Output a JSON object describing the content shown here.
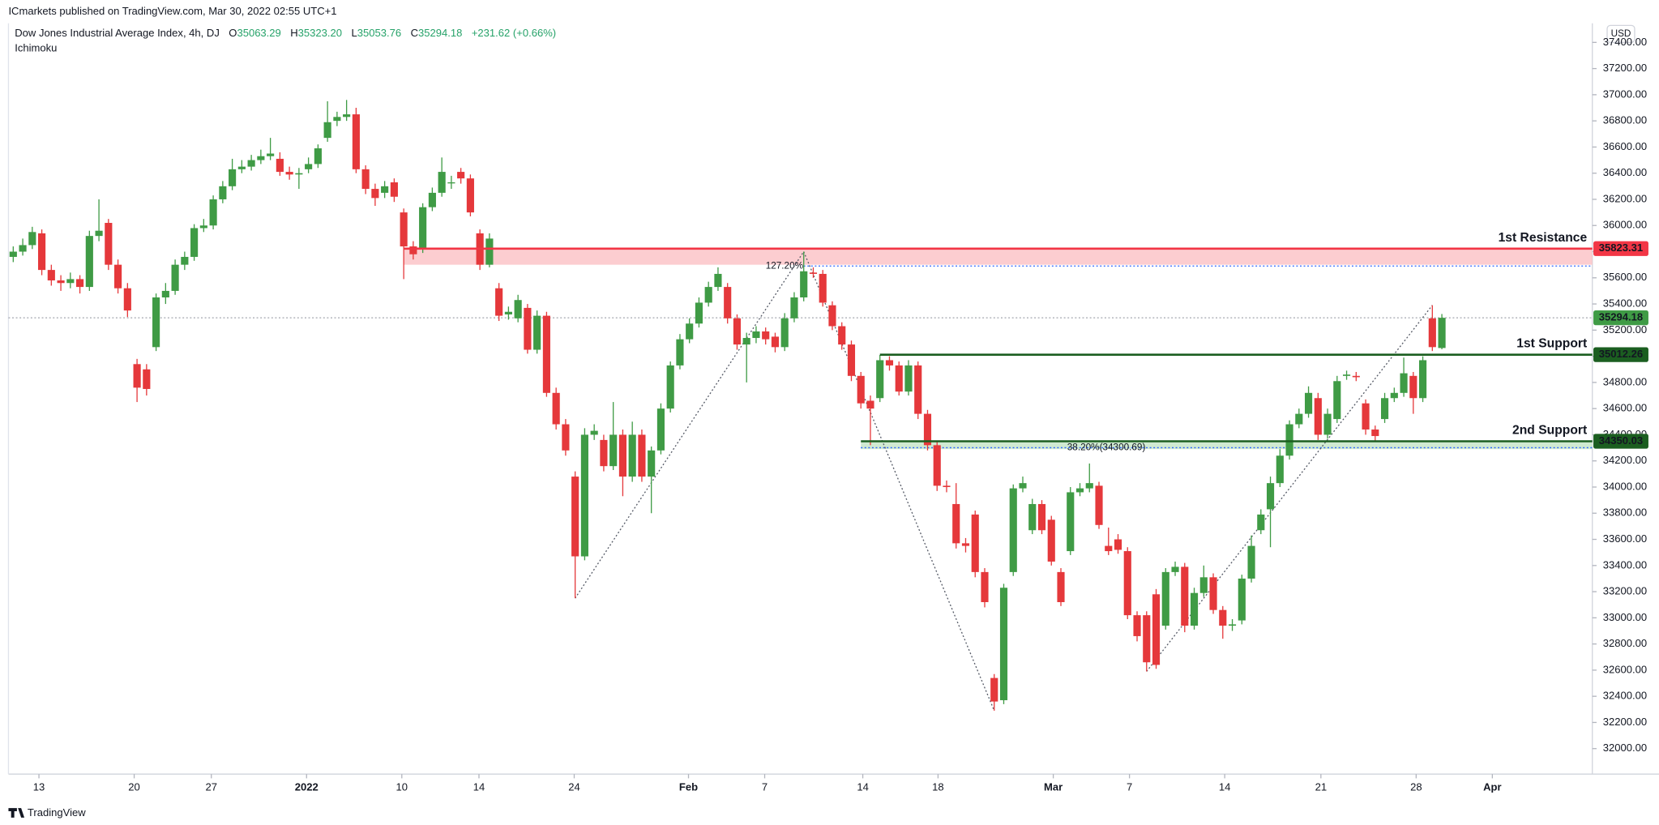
{
  "header": {
    "published": "ICmarkets published on TradingView.com, Mar 30, 2022 02:55 UTC+1",
    "brand": "TradingView"
  },
  "chart_data": {
    "type": "candlestick",
    "title": "Dow Jones Industrial Average Index, 4h, DJ",
    "ohlc_labels": [
      {
        "key": "O",
        "text": "35063.29"
      },
      {
        "key": "H",
        "text": "35323.20"
      },
      {
        "key": "L",
        "text": "35053.76"
      },
      {
        "key": "C",
        "text": "35294.18"
      }
    ],
    "change": "+231.62 (+0.66%)",
    "indicator": "Ichimoku",
    "currency": "USD",
    "up_color": "#3f9b45",
    "down_color": "#e5383b",
    "x": [
      0,
      1,
      2,
      3,
      4,
      5,
      6,
      7,
      8,
      9,
      10,
      11,
      12,
      13,
      14,
      15,
      16,
      17,
      18,
      19,
      20,
      21,
      22,
      23,
      24,
      25,
      26,
      27,
      28,
      29,
      30,
      31,
      32,
      33,
      34,
      35,
      36,
      37,
      38,
      39,
      40,
      41,
      42,
      43,
      44,
      45,
      46,
      47,
      48,
      49,
      50,
      51,
      52,
      53,
      54,
      55,
      56,
      57,
      58,
      59,
      60,
      61,
      62,
      63,
      64,
      65,
      66,
      67,
      68,
      69,
      70,
      71,
      72,
      73,
      74,
      75,
      76,
      77,
      78,
      79,
      80,
      81,
      82,
      83,
      84,
      85,
      86,
      87,
      88,
      89,
      90,
      91,
      92,
      93,
      94,
      95,
      96,
      97,
      98,
      99,
      100,
      101,
      102,
      103,
      104,
      105,
      106,
      107,
      108,
      109,
      110,
      111,
      112,
      113,
      114,
      115,
      116,
      117,
      118,
      119,
      120,
      121,
      122,
      123,
      124,
      125,
      126,
      127,
      128,
      129,
      130,
      131,
      132,
      133,
      134,
      135,
      136,
      137,
      138,
      139,
      140,
      141,
      142,
      143,
      144,
      145,
      146,
      147,
      148,
      149,
      150
    ],
    "open": [
      35760,
      35800,
      35850,
      35940,
      35660,
      35580,
      35560,
      35590,
      35530,
      35920,
      36020,
      35700,
      35520,
      34940,
      34900,
      35070,
      35450,
      35500,
      35700,
      35760,
      35980,
      36000,
      36200,
      36300,
      36430,
      36450,
      36500,
      36530,
      36510,
      36410,
      36390,
      36430,
      36470,
      36670,
      36800,
      36830,
      36850,
      36430,
      36280,
      36250,
      36330,
      36100,
      35840,
      35820,
      36140,
      36250,
      36330,
      36410,
      36360,
      35940,
      35700,
      35520,
      35320,
      35290,
      35370,
      35050,
      35310,
      34720,
      34480,
      34080,
      33470,
      34400,
      34360,
      34160,
      34400,
      34080,
      34400,
      34080,
      34280,
      34600,
      34930,
      35130,
      35250,
      35410,
      35530,
      35530,
      35290,
      35090,
      35140,
      35190,
      35150,
      35070,
      35290,
      35450,
      35640,
      35630,
      35390,
      35230,
      35090,
      34850,
      34660,
      34680,
      34970,
      34930,
      34730,
      34930,
      34560,
      34320,
      34010,
      33870,
      33570,
      33790,
      33350,
      32540,
      32370,
      33350,
      33990,
      33670,
      33870,
      33750,
      33350,
      33510,
      33960,
      33990,
      34010,
      33550,
      33600,
      33510,
      33020,
      33020,
      33180,
      32940,
      33350,
      33390,
      32940,
      33190,
      33310,
      33060,
      32940,
      32980,
      33300,
      33670,
      33830,
      34030,
      34240,
      34480,
      34560,
      34680,
      34400,
      34520,
      34850,
      34850,
      34640,
      34440,
      34520,
      34680,
      34720,
      34850,
      34680,
      35290,
      35063.29
    ],
    "high": [
      35840,
      35900,
      35990,
      35970,
      35700,
      35620,
      35640,
      35620,
      35960,
      36200,
      36050,
      35740,
      35560,
      34980,
      34940,
      35480,
      35560,
      35740,
      35800,
      36010,
      36050,
      36230,
      36340,
      36510,
      36500,
      36540,
      36580,
      36670,
      36560,
      36450,
      36440,
      36520,
      36620,
      36950,
      36870,
      36960,
      36900,
      36460,
      36320,
      36340,
      36360,
      36130,
      35880,
      36170,
      36290,
      36520,
      36380,
      36440,
      36390,
      35970,
      35940,
      35560,
      35380,
      35470,
      35400,
      35350,
      35340,
      34760,
      34520,
      34120,
      34450,
      34480,
      34400,
      34650,
      34440,
      34500,
      34440,
      34310,
      34640,
      34960,
      35170,
      35290,
      35450,
      35570,
      35680,
      35560,
      35320,
      35180,
      35230,
      35220,
      35180,
      35330,
      35490,
      35800,
      35680,
      35660,
      35420,
      35260,
      35120,
      34880,
      34700,
      35010,
      35000,
      34960,
      34970,
      34960,
      34590,
      34350,
      34050,
      34030,
      33610,
      33820,
      33380,
      32570,
      33260,
      34020,
      34080,
      33910,
      33900,
      33780,
      33380,
      34000,
      34030,
      34180,
      34040,
      33690,
      33640,
      33540,
      33050,
      33050,
      33220,
      33380,
      33430,
      33420,
      33230,
      33400,
      33340,
      33090,
      32990,
      33330,
      33630,
      33830,
      34080,
      34290,
      34510,
      34600,
      34770,
      34720,
      34600,
      34850,
      34890,
      34880,
      34670,
      34470,
      34720,
      34760,
      34990,
      34880,
      35000,
      35390,
      35323.2
    ],
    "low": [
      35720,
      35770,
      35820,
      35620,
      35540,
      35500,
      35520,
      35480,
      35500,
      35880,
      35660,
      35480,
      35300,
      34650,
      34700,
      35040,
      35400,
      35470,
      35660,
      35730,
      35950,
      35970,
      36170,
      36270,
      36400,
      36420,
      36470,
      36500,
      36380,
      36350,
      36280,
      36400,
      36440,
      36640,
      36760,
      36800,
      36400,
      36240,
      36150,
      36210,
      36180,
      35590,
      35740,
      35790,
      36110,
      36220,
      36280,
      36320,
      36070,
      35660,
      35680,
      35270,
      35280,
      35260,
      35020,
      35020,
      34690,
      34440,
      34240,
      33150,
      33440,
      34360,
      34120,
      34130,
      33930,
      34040,
      34040,
      33800,
      34250,
      34570,
      34900,
      35100,
      35220,
      35380,
      35500,
      35250,
      35050,
      34800,
      35100,
      35090,
      35030,
      35040,
      35260,
      35420,
      35600,
      35380,
      35200,
      35050,
      34810,
      34600,
      34320,
      34650,
      34890,
      34700,
      34700,
      34520,
      34280,
      33970,
      33960,
      33530,
      33500,
      33310,
      33080,
      32290,
      32340,
      33320,
      33960,
      33640,
      33640,
      33400,
      33090,
      33480,
      33930,
      33960,
      33680,
      33480,
      33490,
      32990,
      32820,
      32590,
      32610,
      32910,
      33320,
      32890,
      32910,
      33160,
      33030,
      32840,
      32900,
      32950,
      33270,
      33640,
      33540,
      34000,
      34210,
      34450,
      34530,
      34360,
      34370,
      34490,
      34820,
      34810,
      34400,
      34350,
      34490,
      34650,
      34690,
      34560,
      34650,
      35040,
      35053.76
    ],
    "close": [
      35800,
      35850,
      35950,
      35660,
      35580,
      35560,
      35590,
      35530,
      35920,
      35960,
      35700,
      35520,
      35350,
      34760,
      34750,
      35450,
      35500,
      35700,
      35760,
      35980,
      36000,
      36200,
      36300,
      36430,
      36450,
      36500,
      36530,
      36550,
      36410,
      36390,
      36400,
      36470,
      36590,
      36790,
      36830,
      36850,
      36430,
      36280,
      36210,
      36300,
      36220,
      35840,
      35780,
      36140,
      36250,
      36410,
      36330,
      36360,
      36100,
      35700,
      35900,
      35310,
      35340,
      35430,
      35050,
      35310,
      34720,
      34480,
      34280,
      33470,
      34400,
      34430,
      34160,
      34400,
      34080,
      34400,
      34080,
      34280,
      34600,
      34930,
      35130,
      35250,
      35410,
      35530,
      35630,
      35290,
      35090,
      35140,
      35190,
      35130,
      35070,
      35290,
      35450,
      35650,
      35630,
      35410,
      35230,
      35090,
      34850,
      34640,
      34600,
      34970,
      34930,
      34730,
      34930,
      34560,
      34320,
      34010,
      34000,
      33570,
      33550,
      33350,
      33120,
      32360,
      33230,
      33990,
      34030,
      33870,
      33670,
      33430,
      33120,
      33960,
      33990,
      34030,
      33710,
      33510,
      33520,
      33020,
      32860,
      32660,
      32640,
      33350,
      33390,
      32940,
      33190,
      33310,
      33060,
      32940,
      32950,
      33300,
      33550,
      33790,
      34030,
      34240,
      34480,
      34560,
      34720,
      34400,
      34560,
      34810,
      34860,
      34840,
      34440,
      34390,
      34680,
      34720,
      34870,
      34680,
      34970,
      35070,
      35294.18
    ],
    "xlim": [
      -0.5,
      165.8
    ],
    "xticks": [
      {
        "value": 2.7,
        "label": "13"
      },
      {
        "value": 12.7,
        "label": "20"
      },
      {
        "value": 20.8,
        "label": "27"
      },
      {
        "value": 30.8,
        "label": "2022"
      },
      {
        "value": 40.8,
        "label": "10"
      },
      {
        "value": 48.9,
        "label": "14"
      },
      {
        "value": 58.9,
        "label": "24"
      },
      {
        "value": 70.9,
        "label": "Feb"
      },
      {
        "value": 78.9,
        "label": "7"
      },
      {
        "value": 89.2,
        "label": "14"
      },
      {
        "value": 97.1,
        "label": "18"
      },
      {
        "value": 109.2,
        "label": "Mar"
      },
      {
        "value": 117.2,
        "label": "7"
      },
      {
        "value": 127.2,
        "label": "14"
      },
      {
        "value": 137.3,
        "label": "21"
      },
      {
        "value": 147.3,
        "label": "28"
      },
      {
        "value": 155.3,
        "label": "Apr"
      }
    ],
    "ylim": [
      31805,
      37481
    ],
    "yticks": [
      {
        "value": 32000,
        "label": "32000.00"
      },
      {
        "value": 32200,
        "label": "32200.00"
      },
      {
        "value": 32400,
        "label": "32400.00"
      },
      {
        "value": 32600,
        "label": "32600.00"
      },
      {
        "value": 32800,
        "label": "32800.00"
      },
      {
        "value": 33000,
        "label": "33000.00"
      },
      {
        "value": 33200,
        "label": "33200.00"
      },
      {
        "value": 33400,
        "label": "33400.00"
      },
      {
        "value": 33600,
        "label": "33600.00"
      },
      {
        "value": 33800,
        "label": "33800.00"
      },
      {
        "value": 34000,
        "label": "34000.00"
      },
      {
        "value": 34200,
        "label": "34200.00"
      },
      {
        "value": 34400,
        "label": "34400.00"
      },
      {
        "value": 34600,
        "label": "34600.00"
      },
      {
        "value": 34800,
        "label": "34800.00"
      },
      {
        "value": 35000,
        "label": "35000.00"
      },
      {
        "value": 35200,
        "label": "35200.00"
      },
      {
        "value": 35400,
        "label": "35400.00"
      },
      {
        "value": 35600,
        "label": "35600.00"
      },
      {
        "value": 35800,
        "label": "35800.00"
      },
      {
        "value": 36000,
        "label": "36000.00"
      },
      {
        "value": 36200,
        "label": "36200.00"
      },
      {
        "value": 36400,
        "label": "36400.00"
      },
      {
        "value": 36600,
        "label": "36600.00"
      },
      {
        "value": 36800,
        "label": "36800.00"
      },
      {
        "value": 37000,
        "label": "37000.00"
      },
      {
        "value": 37200,
        "label": "37200.00"
      },
      {
        "value": 37400,
        "label": "37400.00"
      }
    ],
    "grid": false,
    "levels": [
      {
        "name": "1st Resistance",
        "value": 35823.31,
        "zone": 35700,
        "start": 41,
        "color": "#f23645",
        "zone_color": "#fbc4c8"
      },
      {
        "name": "1st Support",
        "value": 35012.26,
        "start": 91,
        "color": "#1b5e20"
      },
      {
        "name": "2nd Support",
        "value": 34350.03,
        "zone": 34290,
        "start": 89,
        "color": "#1b5e20",
        "zone_color": "#c8e6c9"
      }
    ],
    "fib_levels": [
      {
        "label": "127.20%",
        "value": 35690,
        "start": 83
      },
      {
        "label": "38.20%(34300.69)",
        "value": 34300.69,
        "start": 89
      }
    ],
    "fib_color": "#2962ff",
    "trendlines": [
      {
        "x": [
          59,
          83
        ],
        "y": [
          33150,
          35800
        ]
      },
      {
        "x": [
          83,
          103
        ],
        "y": [
          35800,
          32290
        ]
      },
      {
        "x": [
          119,
          149
        ],
        "y": [
          32590,
          35390
        ]
      }
    ]
  }
}
